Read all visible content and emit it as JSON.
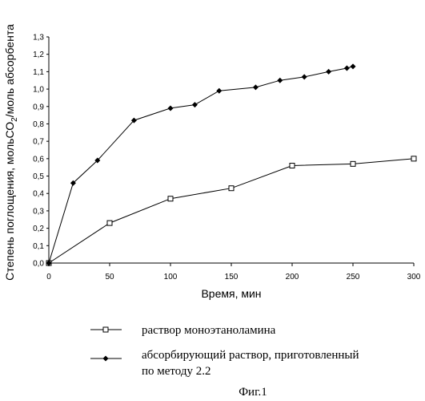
{
  "chart_data": {
    "type": "line",
    "xlabel": "Время, мин",
    "ylabel_pre": "Степень поглощения, мольСО",
    "ylabel_sub": "2",
    "ylabel_post": "/моль абсорбента",
    "xlim": [
      0,
      300
    ],
    "ylim": [
      0,
      1.3
    ],
    "x_ticks": [
      0,
      50,
      100,
      150,
      200,
      250,
      300
    ],
    "y_ticks": [
      "0,0",
      "0,1",
      "0,2",
      "0,3",
      "0,4",
      "0,5",
      "0,6",
      "0,7",
      "0,8",
      "0,9",
      "1,0",
      "1,1",
      "1,2",
      "1,3"
    ],
    "grid": false,
    "legend_position": "bottom",
    "series": [
      {
        "name": "раствор моноэтаноламина",
        "marker": "open-square",
        "x": [
          0,
          50,
          100,
          150,
          200,
          250,
          300
        ],
        "y": [
          0.0,
          0.23,
          0.37,
          0.43,
          0.56,
          0.57,
          0.6
        ]
      },
      {
        "name": "абсорбирующий раствор, приготовленный по методу 2.2",
        "marker": "filled-diamond",
        "x": [
          0,
          20,
          40,
          70,
          100,
          120,
          140,
          170,
          190,
          210,
          230,
          245,
          250
        ],
        "y": [
          0.0,
          0.46,
          0.59,
          0.82,
          0.89,
          0.91,
          0.99,
          1.01,
          1.05,
          1.07,
          1.1,
          1.12,
          1.13
        ]
      }
    ]
  },
  "legend": {
    "line1": "раствор моноэтаноламина",
    "line2a": "абсорбирующий раствор, приготовленный",
    "line2b": "по методу 2.2"
  },
  "caption": "Фиг.1"
}
